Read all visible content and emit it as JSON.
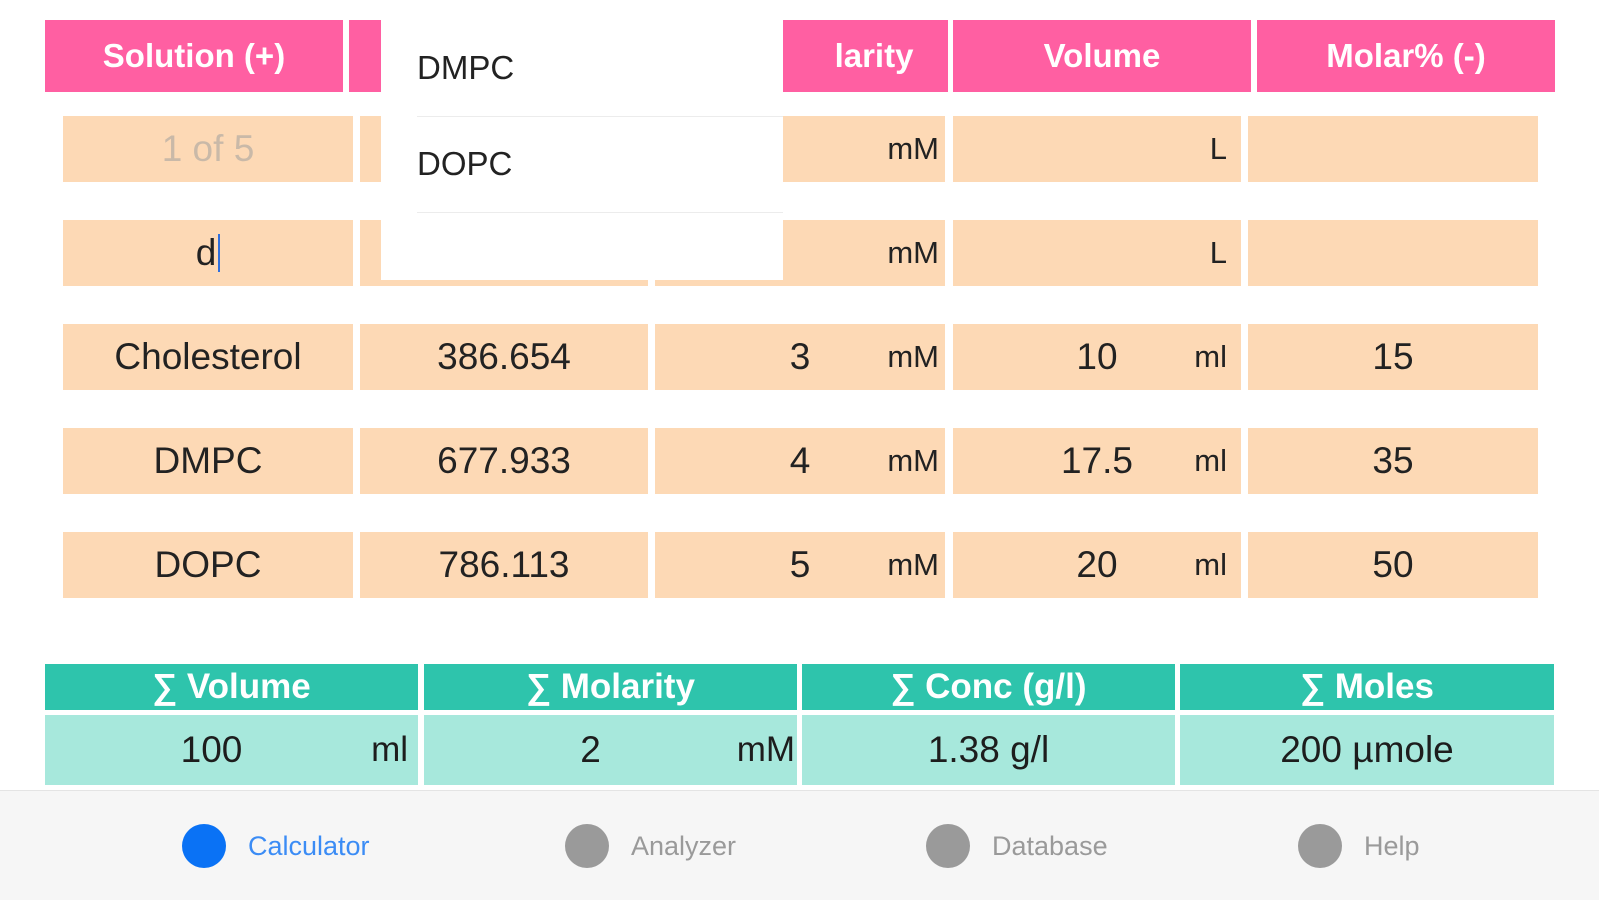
{
  "header": {
    "solution": "Solution (+)",
    "molarity_partial": "larity",
    "volume": "Volume",
    "molar_pct": "Molar% (-)"
  },
  "dropdown": {
    "options": [
      "DMPC",
      "DOPC"
    ]
  },
  "rows": [
    {
      "name": "",
      "name_placeholder": "1 of 5",
      "mw": "",
      "molarity": "",
      "molarity_unit": "mM",
      "volume": "",
      "volume_unit": "L",
      "molar_pct": ""
    },
    {
      "name": "d",
      "mw": "",
      "molarity": "",
      "molarity_unit": "mM",
      "volume": "",
      "volume_unit": "L",
      "molar_pct": ""
    },
    {
      "name": "Cholesterol",
      "mw": "386.654",
      "molarity": "3",
      "molarity_unit": "mM",
      "volume": "10",
      "volume_unit": "ml",
      "molar_pct": "15"
    },
    {
      "name": "DMPC",
      "mw": "677.933",
      "molarity": "4",
      "molarity_unit": "mM",
      "volume": "17.5",
      "volume_unit": "ml",
      "molar_pct": "35"
    },
    {
      "name": "DOPC",
      "mw": "786.113",
      "molarity": "5",
      "molarity_unit": "mM",
      "volume": "20",
      "volume_unit": "ml",
      "molar_pct": "50"
    }
  ],
  "summary": {
    "headers": [
      "∑ Volume",
      "∑ Molarity",
      "∑  Conc (g/l)",
      "∑ Moles"
    ],
    "volume": "100",
    "volume_unit": "ml",
    "molarity": "2",
    "molarity_unit": "mM",
    "conc": "1.38 g/l",
    "moles": "200 µmole"
  },
  "tabs": [
    {
      "label": "Calculator",
      "active": true
    },
    {
      "label": "Analyzer",
      "active": false
    },
    {
      "label": "Database",
      "active": false
    },
    {
      "label": "Help",
      "active": false
    }
  ],
  "colors": {
    "header_pink": "#ff5fa2",
    "cell_peach": "#fdd9b5",
    "summary_header_teal": "#2ec4ac",
    "summary_cell_teal": "#a7e8dc",
    "active_tab_blue": "#0a72f5"
  }
}
